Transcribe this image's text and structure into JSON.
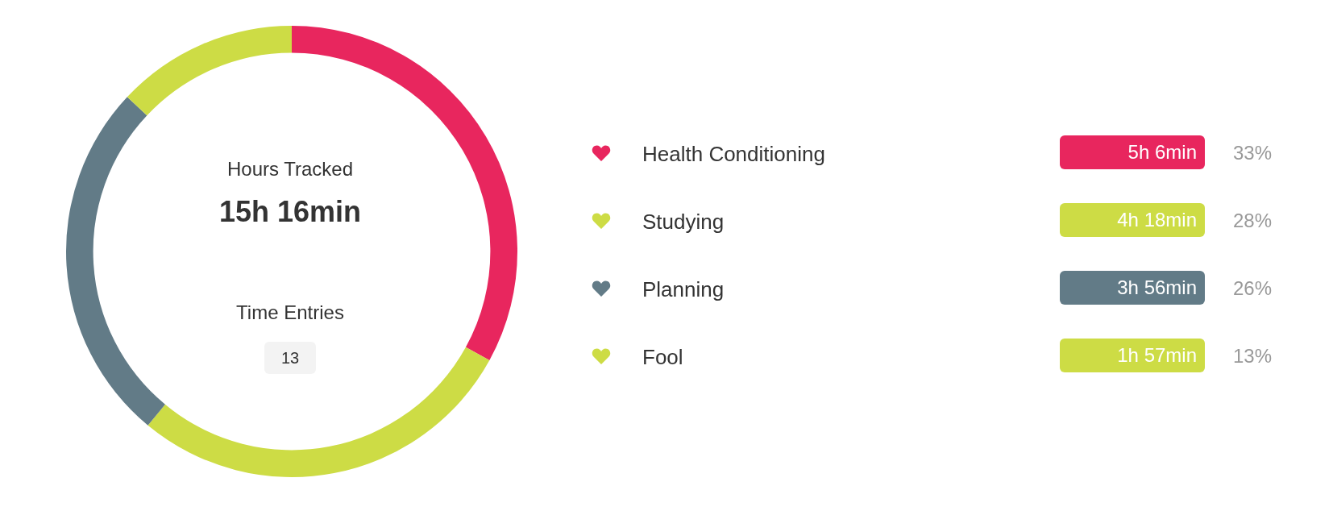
{
  "chart_data": {
    "type": "donut",
    "categories": [
      "Health Conditioning",
      "Studying",
      "Planning",
      "Fool"
    ],
    "values": [
      33,
      28,
      26,
      13
    ],
    "colors": [
      "#e8265e",
      "#cddc45",
      "#627b87",
      "#cddc45"
    ],
    "value_labels": [
      "33%",
      "28%",
      "26%",
      "13%"
    ],
    "legend": "right",
    "annotations": [
      "Hours Tracked",
      "15h 16min",
      "Time Entries",
      "13",
      {
        "text": "5h 6min",
        "x": "Health Conditioning"
      },
      {
        "text": "4h 18min",
        "x": "Studying"
      },
      {
        "text": "3h 56min",
        "x": "Planning"
      },
      {
        "text": "1h 57min",
        "x": "Fool"
      }
    ]
  }
}
